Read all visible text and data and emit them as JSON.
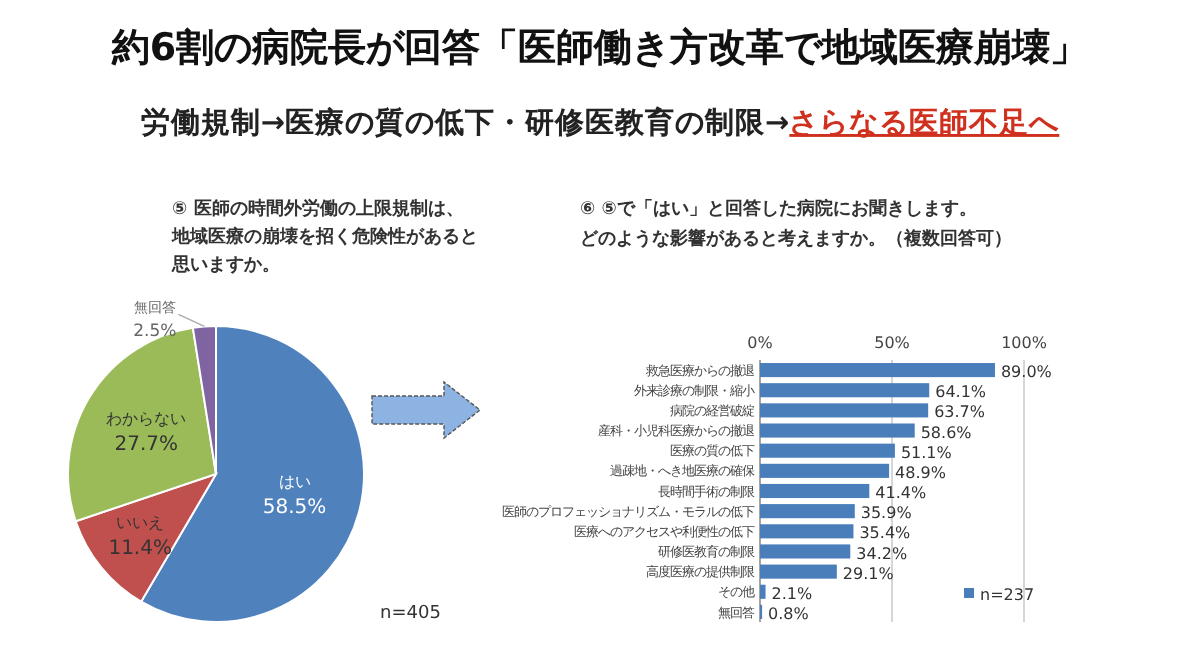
{
  "chart_data": [
    {
      "type": "other",
      "title": "約6割の病院長が回答「医師働き方改革で地域医療崩壊」",
      "subtitle": "労働規制→医療の質の低下・研修医教育の制限→",
      "annotations": [
        "さらなる医師不足へ"
      ]
    },
    {
      "type": "pie",
      "title": "⑤ 医師の時間外労働の上限規制は、地域医療の崩壊を招く危険性があると思いますか。",
      "categories": [
        "はい",
        "いいえ",
        "わからない",
        "無回答"
      ],
      "values": [
        58.5,
        11.4,
        27.7,
        2.5
      ],
      "value_labels": [
        "58.5%",
        "11.4%",
        "27.7%",
        "2.5%"
      ],
      "colors": [
        "#4f81bd",
        "#c0504d",
        "#9bbb59",
        "#8064a2"
      ],
      "annotations": [
        "n=405"
      ]
    },
    {
      "type": "bar",
      "orientation": "horizontal",
      "title": "⑥ ⑤で「はい」と回答した病院にお聞きします。どのような影響があると考えますか。（複数回答可）",
      "categories": [
        "救急医療からの撤退",
        "外来診療の制限・縮小",
        "病院の経営破綻",
        "産科・小児科医療からの撤退",
        "医療の質の低下",
        "過疎地・へき地医療の確保",
        "長時間手術の制限",
        "医師のプロフェッショナリズム・モラルの低下",
        "医療へのアクセスや利便性の低下",
        "研修医教育の制限",
        "高度医療の提供制限",
        "その他",
        "無回答"
      ],
      "series": [
        {
          "name": "n=237",
          "color": "#4a7ebb",
          "values": [
            89.0,
            64.1,
            63.7,
            58.6,
            51.1,
            48.9,
            41.4,
            35.9,
            35.4,
            34.2,
            29.1,
            2.1,
            0.8
          ],
          "value_labels": [
            "89.0%",
            "64.1%",
            "63.7%",
            "58.6%",
            "51.1%",
            "48.9%",
            "41.4%",
            "35.9%",
            "35.4%",
            "34.2%",
            "29.1%",
            "2.1%",
            "0.8%"
          ]
        }
      ],
      "xlim": [
        0,
        100
      ],
      "xticks": [
        {
          "value": 0,
          "label": "0%"
        },
        {
          "value": 50,
          "label": "50%"
        },
        {
          "value": 100,
          "label": "100%"
        }
      ],
      "grid": "x",
      "legend": "bottom right"
    }
  ]
}
